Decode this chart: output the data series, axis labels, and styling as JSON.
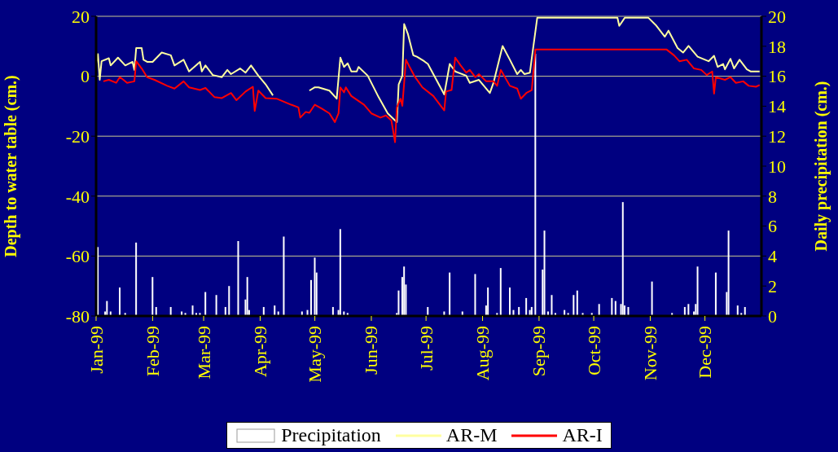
{
  "chart_data": {
    "type": "line",
    "ylabel": "Depth to water table (cm.)",
    "y2label": "Daily precipitation (cm.)",
    "xlim": [
      "1999-01-01",
      "2000-01-01"
    ],
    "xticks": [
      {
        "value": "1999-01-01",
        "label": "Jan-99"
      },
      {
        "value": "1999-02-01",
        "label": "Feb-99"
      },
      {
        "value": "1999-03-01",
        "label": "Mar-99"
      },
      {
        "value": "1999-04-01",
        "label": "Apr-99"
      },
      {
        "value": "1999-05-01",
        "label": "May-99"
      },
      {
        "value": "1999-06-01",
        "label": "Jun-99"
      },
      {
        "value": "1999-07-01",
        "label": "Jul-99"
      },
      {
        "value": "1999-08-01",
        "label": "Aug-99"
      },
      {
        "value": "1999-09-01",
        "label": "Sep-99"
      },
      {
        "value": "1999-10-01",
        "label": "Oct-99"
      },
      {
        "value": "1999-11-01",
        "label": "Nov-99"
      },
      {
        "value": "1999-12-01",
        "label": "Dec-99"
      }
    ],
    "ylim": [
      -80,
      20
    ],
    "yticks": [
      -80,
      -60,
      -40,
      -20,
      0,
      20
    ],
    "y2lim": [
      0,
      20
    ],
    "y2ticks": [
      0,
      2,
      4,
      6,
      8,
      10,
      12,
      14,
      16,
      18,
      20
    ],
    "grid": "y",
    "legend": "bottom",
    "series": [
      {
        "name": "Precipitation",
        "type": "bar",
        "axis": "y2",
        "color": "#ffffff",
        "x": [
          "1999-01-02",
          "1999-01-06",
          "1999-01-07",
          "1999-01-09",
          "1999-01-14",
          "1999-01-17",
          "1999-01-23",
          "1999-02-01",
          "1999-02-03",
          "1999-02-11",
          "1999-02-17",
          "1999-02-19",
          "1999-02-23",
          "1999-02-25",
          "1999-02-27",
          "1999-03-02",
          "1999-03-08",
          "1999-03-13",
          "1999-03-15",
          "1999-03-20",
          "1999-03-24",
          "1999-03-25",
          "1999-03-26",
          "1999-04-03",
          "1999-04-09",
          "1999-04-11",
          "1999-04-14",
          "1999-04-24",
          "1999-04-27",
          "1999-04-29",
          "1999-05-01",
          "1999-05-02",
          "1999-05-11",
          "1999-05-14",
          "1999-05-15",
          "1999-05-17",
          "1999-05-19",
          "1999-06-15",
          "1999-06-16",
          "1999-06-18",
          "1999-06-19",
          "1999-06-20",
          "1999-07-02",
          "1999-07-11",
          "1999-07-14",
          "1999-07-21",
          "1999-07-28",
          "1999-08-03",
          "1999-08-04",
          "1999-08-09",
          "1999-08-11",
          "1999-08-16",
          "1999-08-18",
          "1999-08-21",
          "1999-08-25",
          "1999-08-27",
          "1999-08-28",
          "1999-08-30",
          "1999-09-03",
          "1999-09-04",
          "1999-09-06",
          "1999-09-08",
          "1999-09-10",
          "1999-09-15",
          "1999-09-17",
          "1999-09-20",
          "1999-09-22",
          "1999-09-25",
          "1999-09-30",
          "1999-10-04",
          "1999-10-11",
          "1999-10-13",
          "1999-10-16",
          "1999-10-17",
          "1999-10-18",
          "1999-10-20",
          "1999-11-02",
          "1999-11-13",
          "1999-11-20",
          "1999-11-22",
          "1999-11-25",
          "1999-11-26",
          "1999-11-27",
          "1999-12-07",
          "1999-12-13",
          "1999-12-14",
          "1999-12-19",
          "1999-12-21",
          "1999-12-23"
        ],
        "values": [
          4.6,
          0.3,
          1.0,
          0.3,
          1.9,
          0.2,
          4.9,
          2.6,
          0.6,
          0.6,
          0.3,
          0.2,
          0.7,
          0.2,
          0.2,
          1.6,
          1.4,
          0.6,
          2.0,
          5.0,
          1.1,
          2.6,
          0.4,
          0.6,
          0.7,
          0.3,
          5.3,
          0.3,
          0.4,
          2.4,
          3.9,
          2.9,
          0.6,
          0.4,
          5.8,
          0.3,
          0.2,
          0.2,
          1.7,
          2.6,
          3.3,
          2.1,
          0.6,
          0.3,
          2.9,
          0.3,
          2.8,
          0.7,
          1.9,
          0.2,
          3.2,
          1.9,
          0.4,
          0.6,
          1.2,
          0.4,
          0.6,
          17.5,
          3.1,
          5.7,
          0.3,
          1.4,
          0.2,
          0.4,
          0.2,
          1.4,
          1.7,
          0.2,
          0.2,
          0.8,
          1.2,
          1.0,
          0.8,
          7.6,
          0.7,
          0.6,
          2.3,
          0.2,
          0.6,
          0.8,
          0.3,
          0.8,
          3.3,
          2.9,
          1.6,
          5.7,
          0.7,
          0.2,
          0.6
        ]
      },
      {
        "name": "AR-M",
        "color": "#ffffa0",
        "x": [
          "1999-01-01",
          "1999-01-02",
          "1999-01-03",
          "1999-01-04",
          "1999-01-08",
          "1999-01-09",
          "1999-01-13",
          "1999-01-17",
          "1999-01-21",
          "1999-01-22",
          "1999-01-23",
          "1999-01-26",
          "1999-01-27",
          "1999-01-29",
          "1999-02-01",
          "1999-02-06",
          "1999-02-11",
          "1999-02-13",
          "1999-02-18",
          "1999-02-21",
          "1999-02-27",
          "1999-02-28",
          "1999-03-02",
          "1999-03-06",
          "1999-03-11",
          "1999-03-14",
          "1999-03-16",
          "1999-03-21",
          "1999-03-24",
          "1999-03-27",
          "1999-03-31",
          "1999-04-04",
          "1999-04-08",
          "1999-04-20",
          "1999-04-28",
          "1999-05-01",
          "1999-05-03",
          "1999-05-09",
          "1999-05-13",
          "1999-05-15",
          "1999-05-17",
          "1999-05-19",
          "1999-05-21",
          "1999-05-24",
          "1999-05-25",
          "1999-05-30",
          "1999-06-05",
          "1999-06-10",
          "1999-06-15",
          "1999-06-16",
          "1999-06-18",
          "1999-06-19",
          "1999-06-21",
          "1999-06-24",
          "1999-06-26",
          "1999-06-30",
          "1999-07-02",
          "1999-07-11",
          "1999-07-14",
          "1999-07-17",
          "1999-07-23",
          "1999-07-25",
          "1999-07-30",
          "1999-08-05",
          "1999-08-07",
          "1999-08-12",
          "1999-08-16",
          "1999-08-20",
          "1999-08-22",
          "1999-08-24",
          "1999-08-27",
          "1999-08-28",
          "1999-08-31",
          "1999-10-14",
          "1999-10-15",
          "1999-10-18",
          "1999-10-31",
          "1999-11-04",
          "1999-11-09",
          "1999-11-11",
          "1999-11-16",
          "1999-11-19",
          "1999-11-22",
          "1999-11-27",
          "1999-12-03",
          "1999-12-06",
          "1999-12-08",
          "1999-12-11",
          "1999-12-12",
          "1999-12-15",
          "1999-12-17",
          "1999-12-20",
          "1999-12-24",
          "1999-12-26",
          "1999-12-31"
        ],
        "values": [
          4.1,
          7.4,
          -1.2,
          5,
          6,
          3.6,
          6.2,
          3.6,
          4.8,
          2.1,
          9.4,
          9.4,
          5.5,
          4.8,
          4.8,
          7.9,
          7,
          3.6,
          5.5,
          1.6,
          4.8,
          1.6,
          3.6,
          0.4,
          -0.3,
          2.1,
          0.7,
          2.6,
          1.2,
          3.6,
          0.2,
          -2.7,
          -6.4,
          null,
          -4.8,
          -3.7,
          -3.7,
          -4.8,
          -7.5,
          6.2,
          3.1,
          4.3,
          1.6,
          1.6,
          3.1,
          0.2,
          -7,
          -12.4,
          -15.3,
          -2.7,
          0.2,
          17.4,
          14.2,
          7,
          6.5,
          5,
          4.1,
          -6.1,
          4.1,
          1.6,
          0.2,
          -2.2,
          -1.2,
          -5.6,
          -2.2,
          10.1,
          5.5,
          0.7,
          2.1,
          0.7,
          1.2,
          6,
          19.5,
          19.5,
          16.8,
          19.5,
          19.5,
          17.1,
          13.2,
          15.2,
          9.4,
          7.9,
          10.1,
          6.5,
          5,
          6.8,
          3.1,
          4.1,
          2.3,
          5.8,
          2.6,
          5.5,
          2.3,
          1.6,
          1.6
        ]
      },
      {
        "name": "AR-I",
        "color": "#ff0000",
        "x": [
          "1999-01-05",
          "1999-01-08",
          "1999-01-12",
          "1999-01-14",
          "1999-01-16",
          "1999-01-18",
          "1999-01-22",
          "1999-01-23",
          "1999-01-26",
          "1999-01-29",
          "1999-02-02",
          "1999-02-09",
          "1999-02-13",
          "1999-02-18",
          "1999-02-21",
          "1999-02-27",
          "1999-03-02",
          "1999-03-07",
          "1999-03-11",
          "1999-03-16",
          "1999-03-19",
          "1999-03-24",
          "1999-03-28",
          "1999-03-29",
          "1999-03-31",
          "1999-04-04",
          "1999-04-10",
          "1999-04-18",
          "1999-04-22",
          "1999-04-23",
          "1999-04-26",
          "1999-04-28",
          "1999-05-01",
          "1999-05-05",
          "1999-05-09",
          "1999-05-12",
          "1999-05-14",
          "1999-05-15",
          "1999-05-17",
          "1999-05-18",
          "1999-05-21",
          "1999-05-28",
          "1999-06-01",
          "1999-06-06",
          "1999-06-09",
          "1999-06-12",
          "1999-06-14",
          "1999-06-15",
          "1999-06-17",
          "1999-06-18",
          "1999-06-20",
          "1999-06-22",
          "1999-06-25",
          "1999-06-29",
          "1999-07-05",
          "1999-07-11",
          "1999-07-12",
          "1999-07-15",
          "1999-07-17",
          "1999-07-20",
          "1999-07-23",
          "1999-07-25",
          "1999-07-28",
          "1999-07-30",
          "1999-08-03",
          "1999-08-07",
          "1999-08-09",
          "1999-08-11",
          "1999-08-16",
          "1999-08-20",
          "1999-08-22",
          "1999-08-25",
          "1999-08-28",
          "1999-08-30",
          "1999-11-10",
          "1999-11-14",
          "1999-11-17",
          "1999-11-21",
          "1999-11-25",
          "1999-11-29",
          "1999-12-02",
          "1999-12-05",
          "1999-12-06",
          "1999-12-07",
          "1999-12-12",
          "1999-12-15",
          "1999-12-18",
          "1999-12-22",
          "1999-12-25",
          "1999-12-29",
          "1999-12-31"
        ],
        "values": [
          -1.7,
          -1.2,
          -2.2,
          -0.3,
          -1.2,
          -2.2,
          -1.7,
          5,
          2.6,
          -0.3,
          -1.2,
          -3.2,
          -4.1,
          -1.7,
          -3.7,
          -4.6,
          -3.9,
          -7,
          -7.3,
          -5.6,
          -8,
          -5.1,
          -3.5,
          -11.6,
          -4.8,
          -7.3,
          -7.5,
          -9.5,
          -10.4,
          -13.8,
          -11.9,
          -12.2,
          -9.5,
          -10.9,
          -12.4,
          -15.3,
          -12.4,
          -3.7,
          -5.4,
          -3.7,
          -6.6,
          -9.5,
          -12.4,
          -13.8,
          -13.1,
          -14.8,
          -22,
          -10.4,
          -7.5,
          -9.9,
          5.5,
          3.1,
          -0.3,
          -3.7,
          -6.6,
          -11.4,
          -5.1,
          -4.6,
          6.2,
          3.6,
          1.2,
          2.1,
          -0.3,
          0.7,
          -1.7,
          -1.7,
          -3.2,
          2.1,
          -3.2,
          -4.1,
          -7.5,
          -5.6,
          -4.6,
          8.9,
          8.9,
          7,
          5,
          5.5,
          2.6,
          2.1,
          0.4,
          1.6,
          -5.8,
          -0.3,
          -1.2,
          -0.3,
          -2.2,
          -1.7,
          -3.2,
          -3.5,
          -2.9
        ]
      }
    ]
  }
}
